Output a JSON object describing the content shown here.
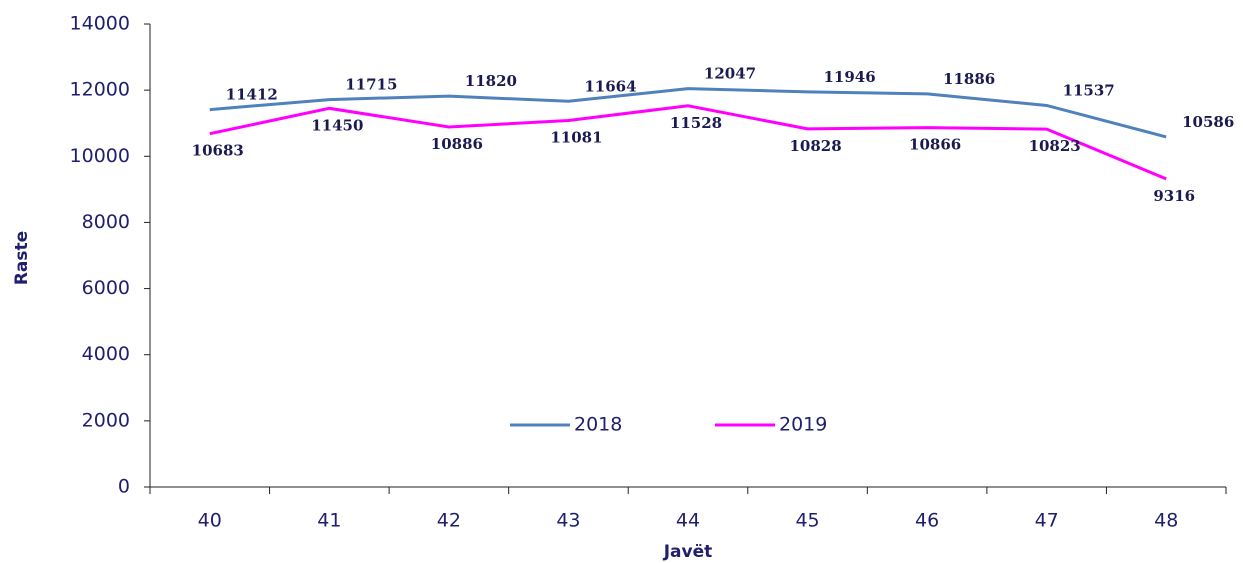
{
  "chart_data": {
    "type": "line",
    "x_label": "Javët",
    "y_label": "Raste",
    "categories": [
      "40",
      "41",
      "42",
      "43",
      "44",
      "45",
      "46",
      "47",
      "48"
    ],
    "series": [
      {
        "name": "2018",
        "color": "#4f81bd",
        "values": [
          11412,
          11715,
          11820,
          11664,
          12047,
          11946,
          11886,
          11537,
          10586
        ]
      },
      {
        "name": "2019",
        "color": "#ff00ff",
        "values": [
          10683,
          11450,
          10886,
          11081,
          11528,
          10828,
          10866,
          10823,
          9316
        ]
      }
    ],
    "ylim": [
      0,
      14000
    ],
    "yticks": [
      0,
      2000,
      4000,
      6000,
      8000,
      10000,
      12000,
      14000
    ],
    "grid": false,
    "legend": "lower center"
  }
}
